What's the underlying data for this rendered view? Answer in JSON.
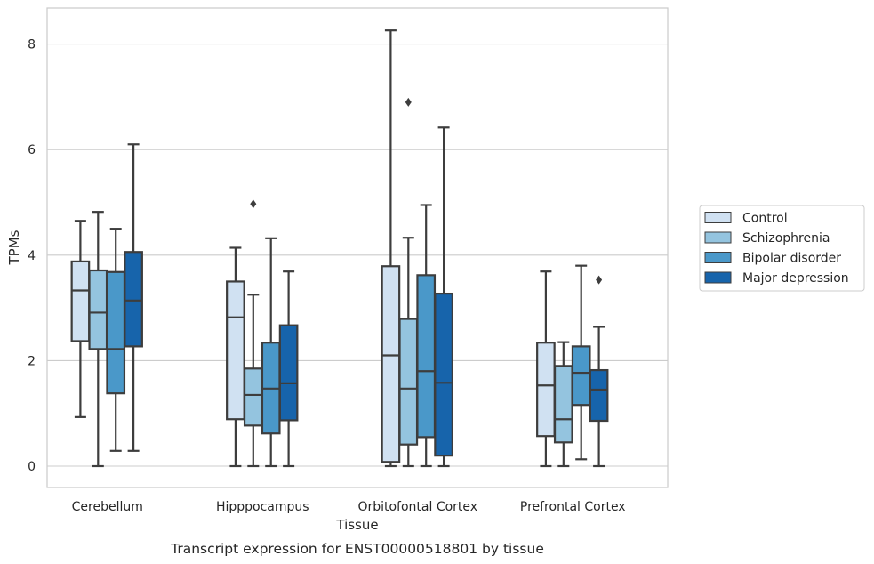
{
  "chart_data": {
    "type": "box",
    "xlabel": "Tissue",
    "ylabel": "TPMs",
    "caption": "Transcript expression for ENST00000518801 by tissue",
    "ylim": [
      -0.4,
      8.65
    ],
    "yticks": [
      0,
      2,
      4,
      6,
      8
    ],
    "grid": true,
    "legend_position": "right",
    "categories": [
      "Cerebellum",
      "Hipppocampus",
      "Orbitofontal Cortex",
      "Prefrontal Cortex"
    ],
    "series": [
      {
        "name": "Control",
        "color": "#d0e1f2",
        "boxes": [
          {
            "whislo": 0.93,
            "q1": 2.37,
            "med": 3.33,
            "q3": 3.88,
            "whishi": 4.65,
            "fliers": []
          },
          {
            "whislo": 0.0,
            "q1": 0.89,
            "med": 2.82,
            "q3": 3.5,
            "whishi": 4.14,
            "fliers": []
          },
          {
            "whislo": 0.0,
            "q1": 0.08,
            "med": 2.1,
            "q3": 3.79,
            "whishi": 8.26,
            "fliers": []
          },
          {
            "whislo": 0.0,
            "q1": 0.57,
            "med": 1.53,
            "q3": 2.34,
            "whishi": 3.69,
            "fliers": []
          }
        ]
      },
      {
        "name": "Schizophrenia",
        "color": "#94c4df",
        "boxes": [
          {
            "whislo": 0.0,
            "q1": 2.22,
            "med": 2.91,
            "q3": 3.71,
            "whishi": 4.82,
            "fliers": []
          },
          {
            "whislo": 0.0,
            "q1": 0.77,
            "med": 1.35,
            "q3": 1.85,
            "whishi": 3.25,
            "fliers": [
              4.97
            ]
          },
          {
            "whislo": 0.0,
            "q1": 0.41,
            "med": 1.47,
            "q3": 2.79,
            "whishi": 4.33,
            "fliers": [
              6.9
            ]
          },
          {
            "whislo": 0.0,
            "q1": 0.45,
            "med": 0.89,
            "q3": 1.9,
            "whishi": 2.35,
            "fliers": []
          }
        ]
      },
      {
        "name": "Bipolar disorder",
        "color": "#4a98c9",
        "boxes": [
          {
            "whislo": 0.29,
            "q1": 1.38,
            "med": 2.22,
            "q3": 3.68,
            "whishi": 4.5,
            "fliers": []
          },
          {
            "whislo": 0.0,
            "q1": 0.62,
            "med": 1.47,
            "q3": 2.34,
            "whishi": 4.32,
            "fliers": []
          },
          {
            "whislo": 0.0,
            "q1": 0.55,
            "med": 1.8,
            "q3": 3.62,
            "whishi": 4.95,
            "fliers": []
          },
          {
            "whislo": 0.13,
            "q1": 1.16,
            "med": 1.77,
            "q3": 2.27,
            "whishi": 3.8,
            "fliers": []
          }
        ]
      },
      {
        "name": "Major depression",
        "color": "#1764ab",
        "boxes": [
          {
            "whislo": 0.29,
            "q1": 2.27,
            "med": 3.14,
            "q3": 4.06,
            "whishi": 6.1,
            "fliers": []
          },
          {
            "whislo": 0.0,
            "q1": 0.87,
            "med": 1.57,
            "q3": 2.67,
            "whishi": 3.69,
            "fliers": []
          },
          {
            "whislo": 0.0,
            "q1": 0.2,
            "med": 1.58,
            "q3": 3.27,
            "whishi": 6.42,
            "fliers": []
          },
          {
            "whislo": 0.0,
            "q1": 0.86,
            "med": 1.45,
            "q3": 1.82,
            "whishi": 2.64,
            "fliers": [
              3.53
            ]
          }
        ]
      }
    ]
  }
}
